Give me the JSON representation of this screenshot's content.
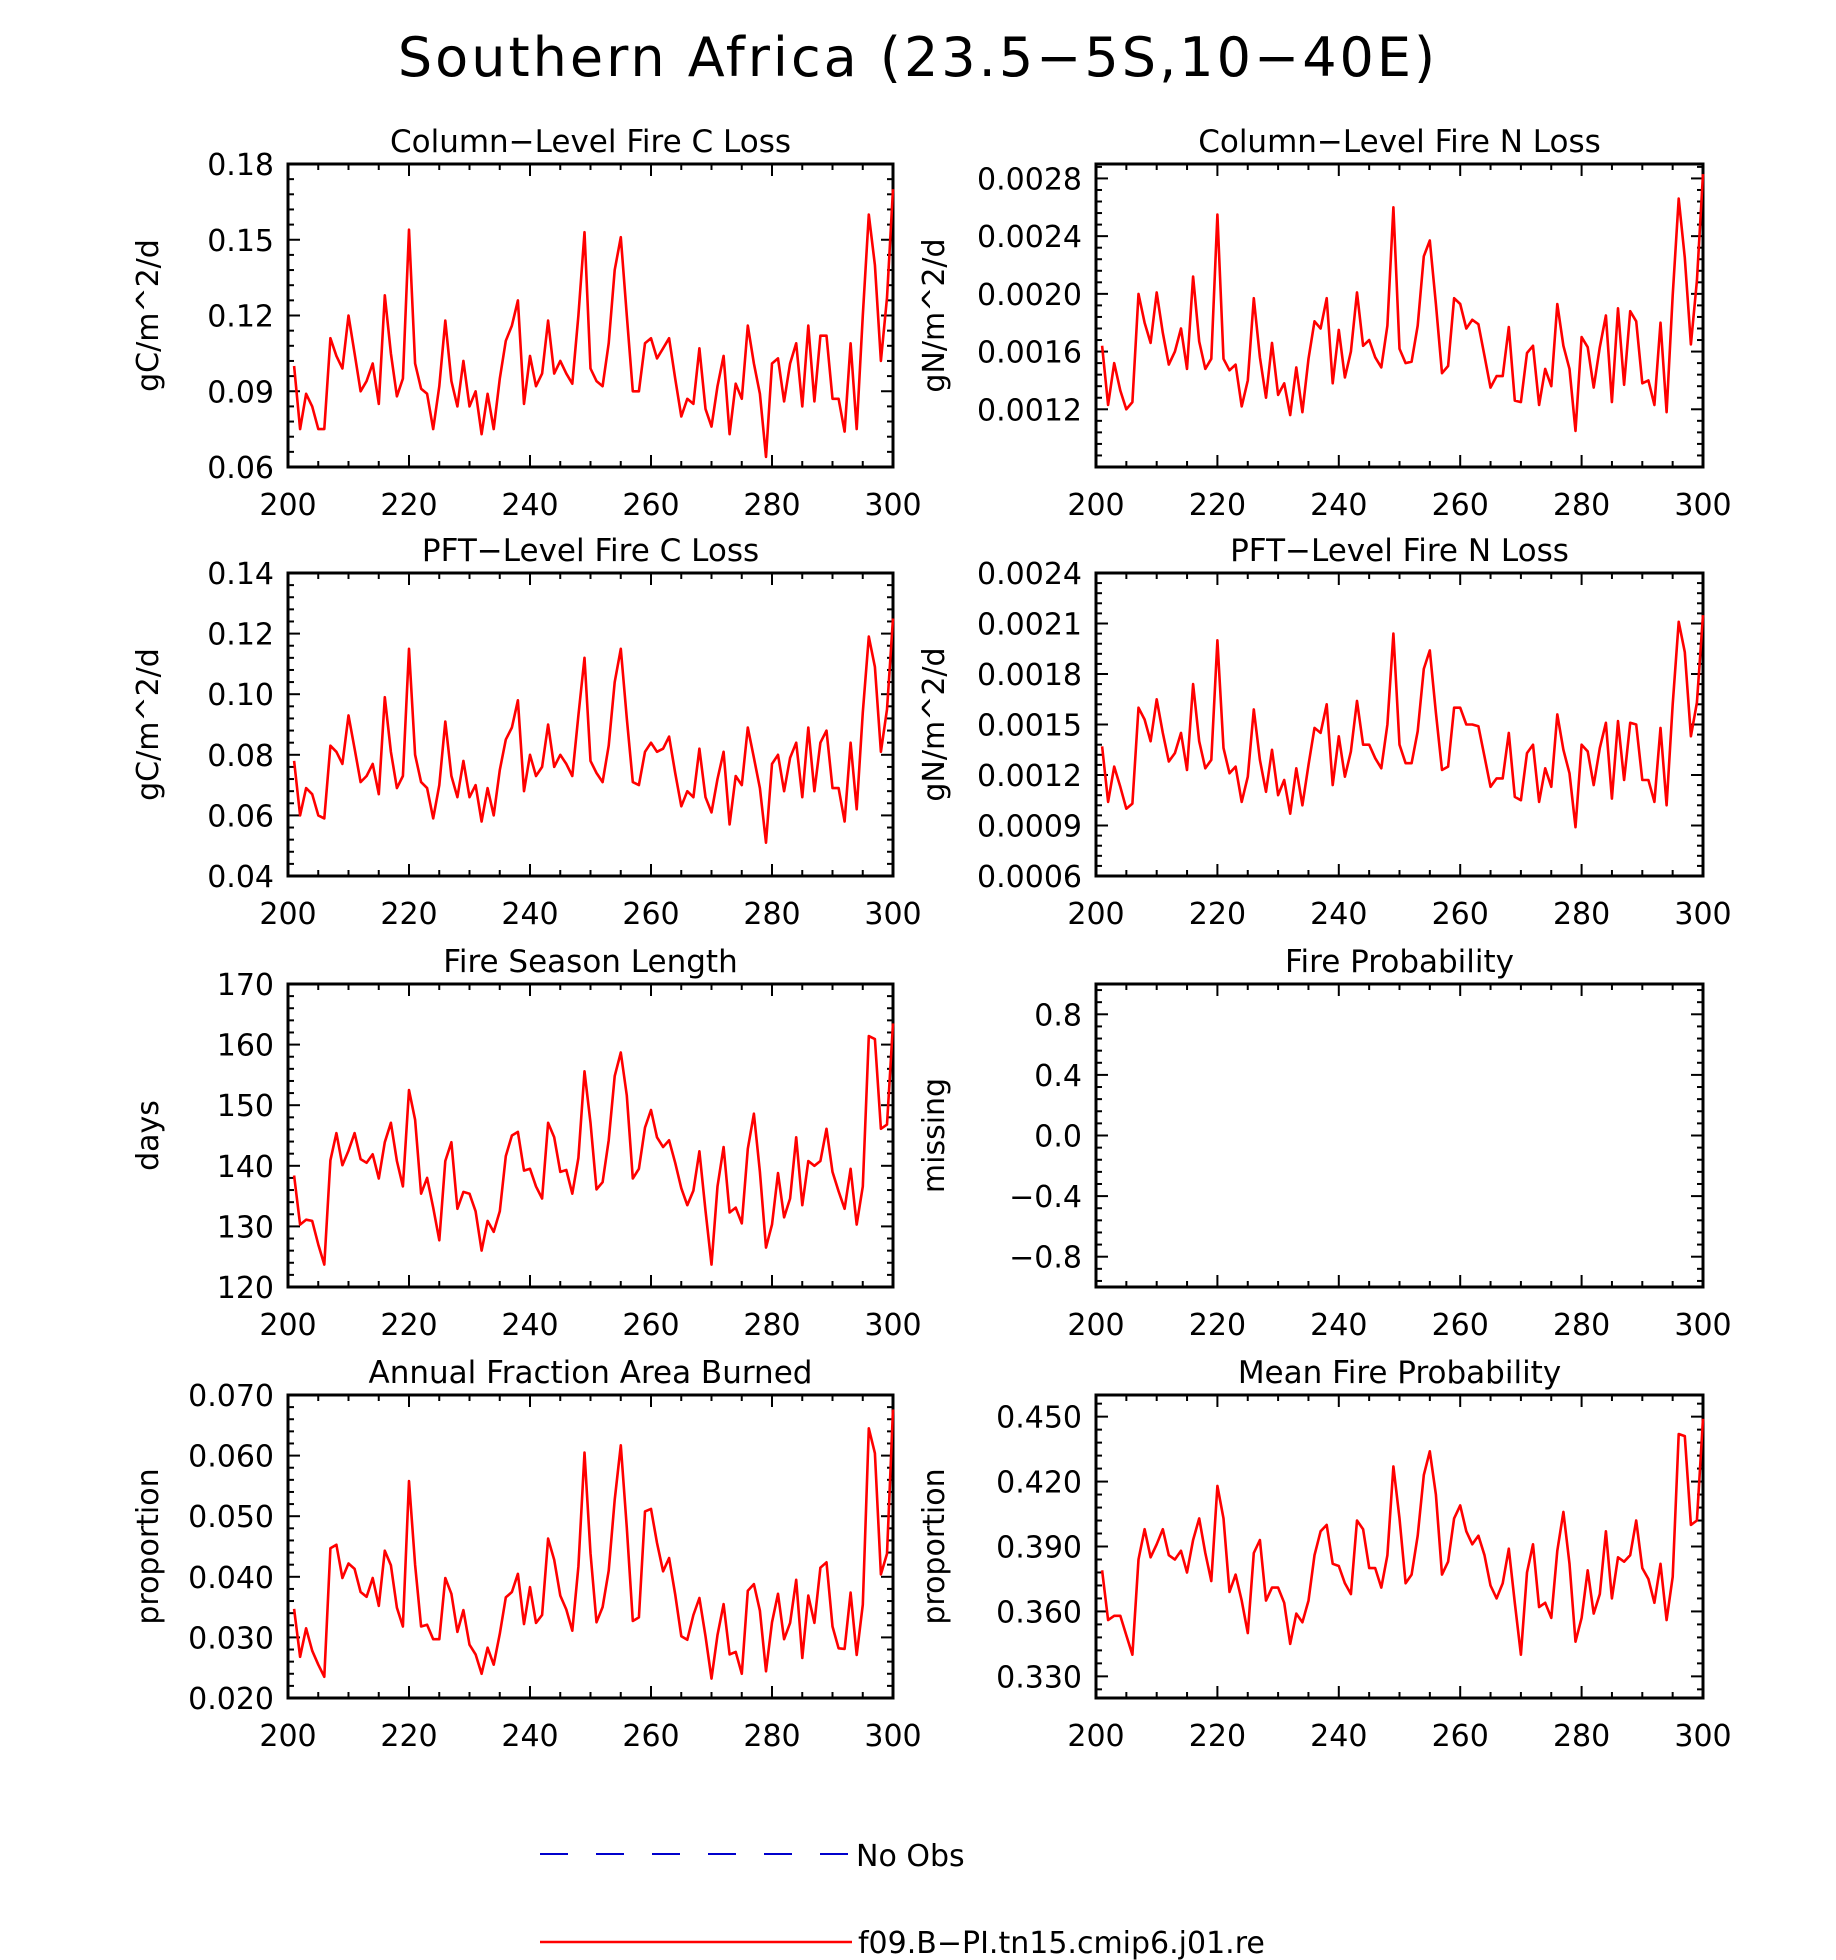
{
  "title": "Southern Africa (23.5−5S,10−40E)",
  "colors": {
    "model": "#ff0000",
    "obs": "#0000cc",
    "axis": "#000000"
  },
  "legend": {
    "obs_label": "No Obs",
    "model_label": "f09.B−PI.tn15.cmip6.j01.re"
  },
  "chart_data": [
    {
      "type": "line",
      "title": "Column−Level Fire C Loss",
      "ylabel": "gC/m^2/d",
      "xlim": [
        200,
        300
      ],
      "ylim": [
        0.06,
        0.18
      ],
      "xticks": [
        200,
        220,
        240,
        260,
        280,
        300
      ],
      "yticks": [
        0.06,
        0.09,
        0.12,
        0.15,
        0.18
      ],
      "ytick_labels": [
        "0.06",
        "0.09",
        "0.12",
        "0.15",
        "0.18"
      ],
      "x_start": 201,
      "series": [
        {
          "name": "f09.B−PI.tn15.cmip6.j01.re",
          "values": [
            0.1,
            0.075,
            0.089,
            0.084,
            0.075,
            0.075,
            0.111,
            0.104,
            0.099,
            0.12,
            0.105,
            0.09,
            0.094,
            0.101,
            0.085,
            0.128,
            0.105,
            0.088,
            0.095,
            0.154,
            0.101,
            0.091,
            0.089,
            0.075,
            0.092,
            0.118,
            0.094,
            0.084,
            0.102,
            0.084,
            0.09,
            0.073,
            0.089,
            0.075,
            0.095,
            0.11,
            0.116,
            0.126,
            0.085,
            0.104,
            0.092,
            0.097,
            0.118,
            0.097,
            0.102,
            0.097,
            0.093,
            0.12,
            0.153,
            0.099,
            0.094,
            0.092,
            0.109,
            0.138,
            0.151,
            0.12,
            0.09,
            0.09,
            0.109,
            0.111,
            0.103,
            0.107,
            0.111,
            0.095,
            0.08,
            0.087,
            0.085,
            0.107,
            0.083,
            0.076,
            0.092,
            0.104,
            0.073,
            0.093,
            0.087,
            0.116,
            0.101,
            0.089,
            0.064,
            0.101,
            0.103,
            0.086,
            0.101,
            0.109,
            0.084,
            0.116,
            0.086,
            0.112,
            0.112,
            0.087,
            0.087,
            0.074,
            0.109,
            0.075,
            0.12,
            0.16,
            0.14,
            0.102,
            0.127,
            0.17
          ]
        }
      ]
    },
    {
      "type": "line",
      "title": "Column−Level Fire N Loss",
      "ylabel": "gN/m^2/d",
      "xlim": [
        200,
        300
      ],
      "ylim": [
        0.0008,
        0.0029
      ],
      "xticks": [
        200,
        220,
        240,
        260,
        280,
        300
      ],
      "yticks": [
        0.0012,
        0.0016,
        0.002,
        0.0024,
        0.0028
      ],
      "ytick_labels": [
        "0.0012",
        "0.0016",
        "0.0020",
        "0.0024",
        "0.0028"
      ],
      "x_start": 201,
      "series": [
        {
          "name": "f09.B−PI.tn15.cmip6.j01.re",
          "values": [
            0.00164,
            0.00123,
            0.00152,
            0.00133,
            0.0012,
            0.00125,
            0.002,
            0.0018,
            0.00166,
            0.00201,
            0.00173,
            0.00151,
            0.0016,
            0.00176,
            0.00148,
            0.00212,
            0.00167,
            0.00148,
            0.00155,
            0.00255,
            0.00155,
            0.00147,
            0.00151,
            0.00122,
            0.0014,
            0.00197,
            0.00156,
            0.00128,
            0.00166,
            0.0013,
            0.00138,
            0.00116,
            0.00149,
            0.00118,
            0.00155,
            0.00181,
            0.00176,
            0.00197,
            0.00138,
            0.00175,
            0.00142,
            0.0016,
            0.00201,
            0.00164,
            0.00168,
            0.00156,
            0.00149,
            0.00178,
            0.0026,
            0.00162,
            0.00152,
            0.00153,
            0.00178,
            0.00226,
            0.00237,
            0.00193,
            0.00145,
            0.0015,
            0.00197,
            0.00193,
            0.00176,
            0.00182,
            0.00179,
            0.00157,
            0.00135,
            0.00143,
            0.00143,
            0.00177,
            0.00126,
            0.00125,
            0.00159,
            0.00164,
            0.00123,
            0.00148,
            0.00136,
            0.00193,
            0.00164,
            0.00148,
            0.00105,
            0.0017,
            0.00163,
            0.00135,
            0.00163,
            0.00185,
            0.00125,
            0.0019,
            0.00137,
            0.00188,
            0.00181,
            0.00138,
            0.0014,
            0.00123,
            0.0018,
            0.00118,
            0.00199,
            0.00266,
            0.00225,
            0.00165,
            0.00209,
            0.00283
          ]
        }
      ]
    },
    {
      "type": "line",
      "title": "PFT−Level Fire C Loss",
      "ylabel": "gC/m^2/d",
      "xlim": [
        200,
        300
      ],
      "ylim": [
        0.04,
        0.14
      ],
      "xticks": [
        200,
        220,
        240,
        260,
        280,
        300
      ],
      "yticks": [
        0.04,
        0.06,
        0.08,
        0.1,
        0.12,
        0.14
      ],
      "ytick_labels": [
        "0.04",
        "0.06",
        "0.08",
        "0.10",
        "0.12",
        "0.14"
      ],
      "x_start": 201,
      "series": [
        {
          "name": "f09.B−PI.tn15.cmip6.j01.re",
          "values": [
            0.078,
            0.06,
            0.069,
            0.067,
            0.06,
            0.059,
            0.083,
            0.081,
            0.077,
            0.093,
            0.082,
            0.071,
            0.073,
            0.077,
            0.067,
            0.099,
            0.081,
            0.069,
            0.073,
            0.115,
            0.08,
            0.071,
            0.069,
            0.059,
            0.07,
            0.091,
            0.073,
            0.066,
            0.078,
            0.066,
            0.07,
            0.058,
            0.069,
            0.06,
            0.075,
            0.085,
            0.089,
            0.098,
            0.068,
            0.08,
            0.073,
            0.076,
            0.09,
            0.076,
            0.08,
            0.077,
            0.073,
            0.093,
            0.112,
            0.078,
            0.074,
            0.071,
            0.083,
            0.104,
            0.115,
            0.092,
            0.071,
            0.07,
            0.081,
            0.084,
            0.081,
            0.082,
            0.086,
            0.074,
            0.063,
            0.068,
            0.066,
            0.082,
            0.066,
            0.061,
            0.072,
            0.081,
            0.057,
            0.073,
            0.07,
            0.089,
            0.079,
            0.069,
            0.051,
            0.077,
            0.08,
            0.068,
            0.079,
            0.084,
            0.066,
            0.089,
            0.068,
            0.084,
            0.088,
            0.069,
            0.069,
            0.058,
            0.084,
            0.062,
            0.094,
            0.119,
            0.109,
            0.081,
            0.095,
            0.125
          ]
        }
      ]
    },
    {
      "type": "line",
      "title": "PFT−Level Fire N Loss",
      "ylabel": "gN/m^2/d",
      "xlim": [
        200,
        300
      ],
      "ylim": [
        0.0006,
        0.0024
      ],
      "xticks": [
        200,
        220,
        240,
        260,
        280,
        300
      ],
      "yticks": [
        0.0006,
        0.0009,
        0.0012,
        0.0015,
        0.0018,
        0.0021,
        0.0024
      ],
      "ytick_labels": [
        "0.0006",
        "0.0009",
        "0.0012",
        "0.0015",
        "0.0018",
        "0.0021",
        "0.0024"
      ],
      "x_start": 201,
      "series": [
        {
          "name": "f09.B−PI.tn15.cmip6.j01.re",
          "values": [
            0.00137,
            0.00104,
            0.00125,
            0.00113,
            0.001,
            0.00103,
            0.0016,
            0.00153,
            0.0014,
            0.00165,
            0.00145,
            0.00128,
            0.00133,
            0.00145,
            0.00123,
            0.00174,
            0.0014,
            0.00124,
            0.00129,
            0.002,
            0.00136,
            0.00121,
            0.00125,
            0.00104,
            0.00119,
            0.00159,
            0.00129,
            0.0011,
            0.00135,
            0.00108,
            0.00117,
            0.00097,
            0.00124,
            0.00102,
            0.00126,
            0.00148,
            0.00145,
            0.00162,
            0.00114,
            0.00143,
            0.00119,
            0.00134,
            0.00164,
            0.00138,
            0.00138,
            0.0013,
            0.00124,
            0.0015,
            0.00204,
            0.00138,
            0.00127,
            0.00127,
            0.00146,
            0.00183,
            0.00194,
            0.00157,
            0.00123,
            0.00125,
            0.0016,
            0.0016,
            0.0015,
            0.0015,
            0.00149,
            0.00131,
            0.00113,
            0.00118,
            0.00118,
            0.00145,
            0.00107,
            0.00105,
            0.00133,
            0.00138,
            0.00104,
            0.00124,
            0.00113,
            0.00156,
            0.00135,
            0.00121,
            0.00089,
            0.00138,
            0.00134,
            0.00114,
            0.00136,
            0.00151,
            0.00106,
            0.00152,
            0.00117,
            0.00151,
            0.0015,
            0.00117,
            0.00117,
            0.00104,
            0.00148,
            0.00102,
            0.00162,
            0.00211,
            0.00193,
            0.00143,
            0.00163,
            0.00215
          ]
        }
      ]
    },
    {
      "type": "line",
      "title": "Fire Season Length",
      "ylabel": "days",
      "xlim": [
        200,
        300
      ],
      "ylim": [
        120,
        170
      ],
      "xticks": [
        200,
        220,
        240,
        260,
        280,
        300
      ],
      "yticks": [
        120,
        130,
        140,
        150,
        160,
        170
      ],
      "ytick_labels": [
        "120",
        "130",
        "140",
        "150",
        "160",
        "170"
      ],
      "x_start": 201,
      "series": [
        {
          "name": "f09.B−PI.tn15.cmip6.j01.re",
          "values": [
            138.4,
            130.3,
            131.1,
            130.9,
            127.0,
            123.7,
            140.9,
            145.4,
            140.1,
            142.5,
            145.4,
            141.1,
            140.5,
            141.9,
            137.9,
            143.9,
            147.1,
            140.8,
            136.6,
            152.5,
            147.6,
            135.4,
            138.0,
            133.1,
            127.7,
            140.8,
            143.9,
            132.9,
            135.7,
            135.4,
            132.5,
            126.0,
            130.9,
            129.1,
            132.5,
            141.6,
            145.0,
            145.6,
            139.2,
            139.5,
            136.6,
            134.6,
            147.1,
            144.7,
            139.0,
            139.3,
            135.4,
            141.3,
            155.6,
            147.1,
            136.1,
            137.3,
            144.2,
            154.8,
            158.7,
            151.6,
            137.9,
            139.5,
            146.3,
            149.2,
            144.7,
            143.1,
            144.2,
            140.5,
            136.3,
            133.5,
            135.9,
            142.4,
            132.6,
            123.7,
            136.6,
            143.1,
            132.3,
            133.1,
            130.5,
            142.8,
            148.6,
            139.0,
            126.5,
            130.3,
            138.8,
            131.5,
            134.6,
            144.7,
            133.5,
            140.8,
            140.0,
            140.8,
            146.1,
            139.0,
            135.8,
            132.9,
            139.5,
            130.3,
            136.6,
            161.4,
            160.9,
            146.1,
            146.8,
            163.5
          ]
        }
      ]
    },
    {
      "type": "line",
      "title": "Fire Probability",
      "ylabel": "missing",
      "xlim": [
        200,
        300
      ],
      "ylim": [
        -1.0,
        1.0
      ],
      "xticks": [
        200,
        220,
        240,
        260,
        280,
        300
      ],
      "yticks": [
        -0.8,
        -0.4,
        0.0,
        0.4,
        0.8
      ],
      "ytick_labels": [
        "−0.8",
        "−0.4",
        "0.0",
        "0.4",
        "0.8"
      ],
      "x_start": 201,
      "series": []
    },
    {
      "type": "line",
      "title": "Annual Fraction Area Burned",
      "ylabel": "proportion",
      "xlim": [
        200,
        300
      ],
      "ylim": [
        0.02,
        0.07
      ],
      "xticks": [
        200,
        220,
        240,
        260,
        280,
        300
      ],
      "yticks": [
        0.02,
        0.03,
        0.04,
        0.05,
        0.06,
        0.07
      ],
      "ytick_labels": [
        "0.020",
        "0.030",
        "0.040",
        "0.050",
        "0.060",
        "0.070"
      ],
      "x_start": 201,
      "series": [
        {
          "name": "f09.B−PI.tn15.cmip6.j01.re",
          "values": [
            0.0347,
            0.0268,
            0.0315,
            0.0278,
            0.0255,
            0.0235,
            0.0447,
            0.0453,
            0.0398,
            0.0422,
            0.0413,
            0.0375,
            0.0367,
            0.0398,
            0.0352,
            0.0443,
            0.0419,
            0.0349,
            0.0318,
            0.0558,
            0.042,
            0.0318,
            0.0321,
            0.0297,
            0.0297,
            0.0398,
            0.0372,
            0.0309,
            0.0345,
            0.0288,
            0.0272,
            0.024,
            0.0283,
            0.0255,
            0.0306,
            0.0366,
            0.0375,
            0.0405,
            0.0322,
            0.0383,
            0.0324,
            0.0337,
            0.0463,
            0.0428,
            0.0369,
            0.0346,
            0.0311,
            0.0417,
            0.0605,
            0.0439,
            0.0325,
            0.035,
            0.041,
            0.0527,
            0.0617,
            0.0481,
            0.0327,
            0.0333,
            0.0508,
            0.0512,
            0.0456,
            0.0409,
            0.0431,
            0.0371,
            0.0302,
            0.0296,
            0.0337,
            0.0365,
            0.0302,
            0.0232,
            0.0304,
            0.0355,
            0.0272,
            0.0276,
            0.024,
            0.0377,
            0.0388,
            0.0344,
            0.0244,
            0.0325,
            0.0372,
            0.0297,
            0.0324,
            0.0395,
            0.0266,
            0.0369,
            0.0324,
            0.0415,
            0.0424,
            0.0318,
            0.0282,
            0.0281,
            0.0374,
            0.0271,
            0.0354,
            0.0645,
            0.0604,
            0.0404,
            0.0438,
            0.0676
          ]
        }
      ]
    },
    {
      "type": "line",
      "title": "Mean Fire Probability",
      "ylabel": "proportion",
      "xlim": [
        200,
        300
      ],
      "ylim": [
        0.32,
        0.46
      ],
      "xticks": [
        200,
        220,
        240,
        260,
        280,
        300
      ],
      "yticks": [
        0.33,
        0.36,
        0.39,
        0.42,
        0.45
      ],
      "ytick_labels": [
        "0.330",
        "0.360",
        "0.390",
        "0.420",
        "0.450"
      ],
      "x_start": 201,
      "series": [
        {
          "name": "f09.B−PI.tn15.cmip6.j01.re",
          "values": [
            0.379,
            0.356,
            0.358,
            0.358,
            0.349,
            0.34,
            0.384,
            0.398,
            0.385,
            0.391,
            0.398,
            0.386,
            0.384,
            0.388,
            0.378,
            0.393,
            0.403,
            0.387,
            0.374,
            0.418,
            0.403,
            0.369,
            0.377,
            0.365,
            0.35,
            0.387,
            0.393,
            0.365,
            0.371,
            0.371,
            0.364,
            0.345,
            0.359,
            0.355,
            0.365,
            0.386,
            0.397,
            0.4,
            0.382,
            0.381,
            0.373,
            0.368,
            0.402,
            0.398,
            0.38,
            0.38,
            0.371,
            0.386,
            0.427,
            0.403,
            0.373,
            0.377,
            0.395,
            0.423,
            0.434,
            0.414,
            0.377,
            0.383,
            0.403,
            0.409,
            0.397,
            0.391,
            0.395,
            0.386,
            0.372,
            0.366,
            0.373,
            0.389,
            0.364,
            0.34,
            0.378,
            0.391,
            0.362,
            0.364,
            0.357,
            0.388,
            0.406,
            0.382,
            0.346,
            0.357,
            0.379,
            0.359,
            0.368,
            0.397,
            0.366,
            0.385,
            0.383,
            0.386,
            0.402,
            0.38,
            0.375,
            0.364,
            0.382,
            0.356,
            0.376,
            0.442,
            0.441,
            0.4,
            0.402,
            0.449
          ]
        }
      ]
    }
  ]
}
